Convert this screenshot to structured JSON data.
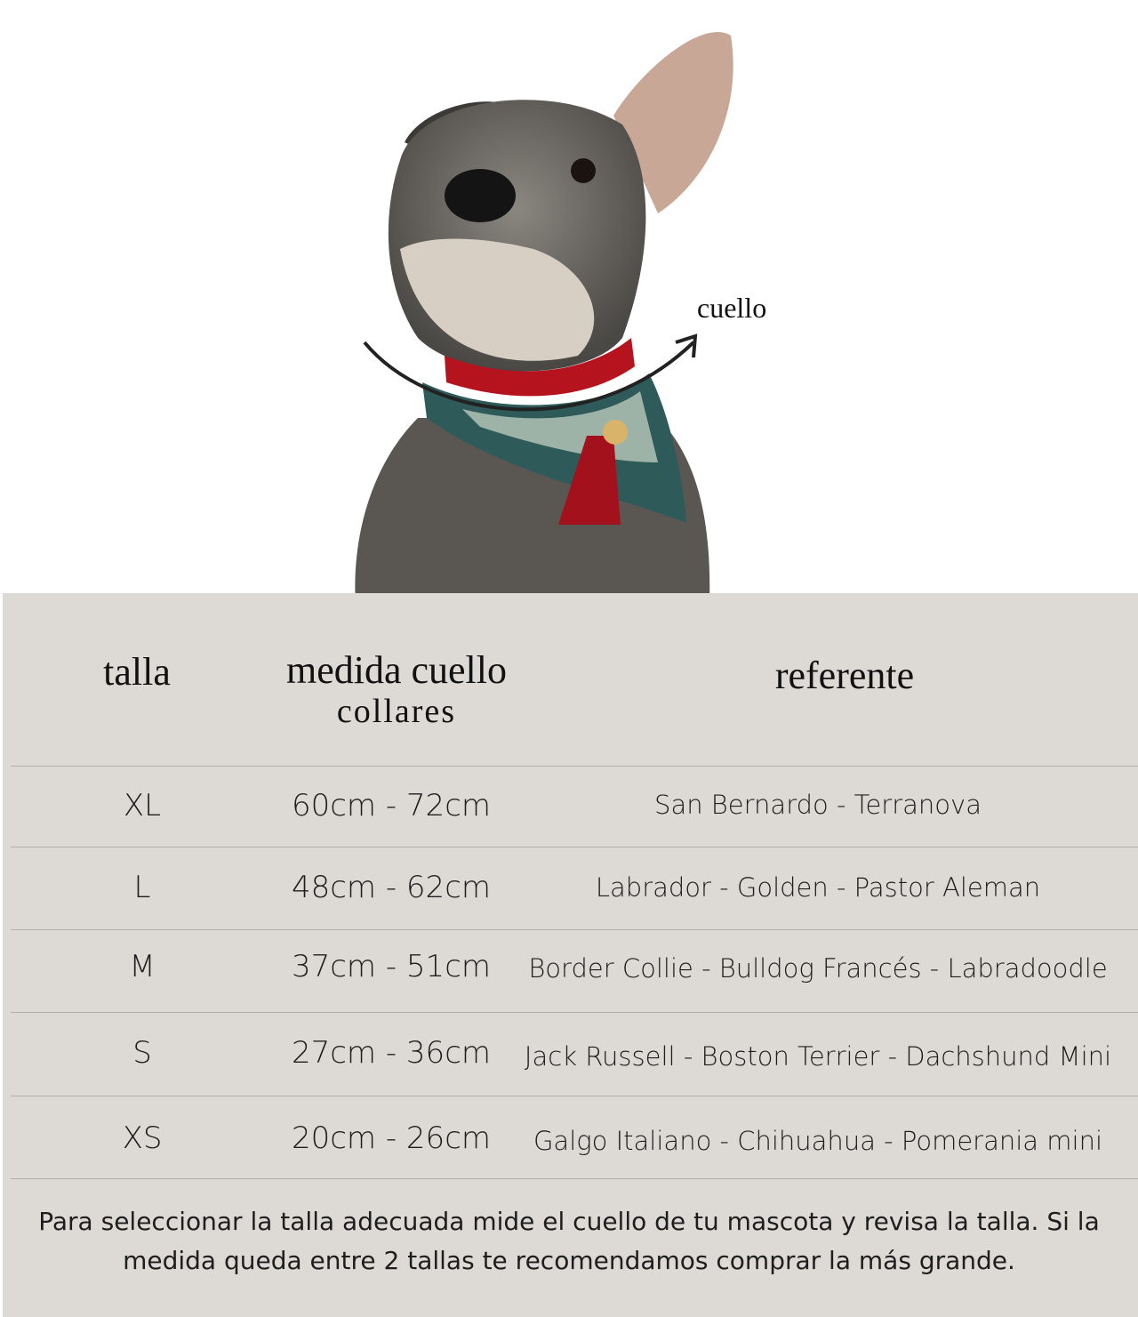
{
  "figure": {
    "neck_label": "cuello",
    "collar_color": "#b5141f",
    "panel_color": "#dddad5"
  },
  "table": {
    "headers": {
      "size": "talla",
      "measure": "medida cuello",
      "measure_sub": "collares",
      "reference": "referente"
    },
    "rows": [
      {
        "size": "XL",
        "measure": "60cm - 72cm",
        "reference": "San Bernardo - Terranova"
      },
      {
        "size": "L",
        "measure": "48cm - 62cm",
        "reference": "Labrador - Golden - Pastor Aleman"
      },
      {
        "size": "M",
        "measure": "37cm - 51cm",
        "reference": "Border Collie - Bulldog Francés - Labradoodle"
      },
      {
        "size": "S",
        "measure": "27cm - 36cm",
        "reference": "Jack Russell - Boston Terrier - Dachshund Mini"
      },
      {
        "size": "XS",
        "measure": "20cm - 26cm",
        "reference": "Galgo Italiano - Chihuahua - Pomerania mini"
      }
    ]
  },
  "footer": {
    "note": "Para seleccionar la talla adecuada mide el cuello de tu mascota y revisa la talla. Si la medida queda entre 2 tallas te recomendamos comprar la más grande."
  }
}
